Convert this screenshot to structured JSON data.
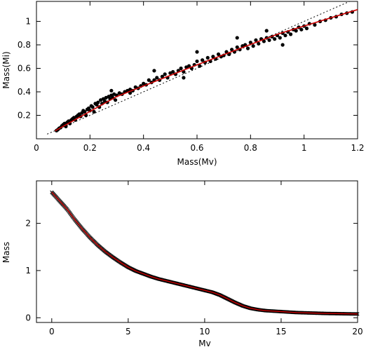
{
  "chart_data": [
    {
      "type": "scatter",
      "xlabel": "Mass(Mv)",
      "ylabel": "Mass(Mi)",
      "xlim": [
        0,
        1.2
      ],
      "ylim": [
        0,
        1.17
      ],
      "xticks": [
        "0",
        "0.2",
        "0.4",
        "0.6",
        "0.8",
        "1",
        "1.2"
      ],
      "yticks": [
        "0.2",
        "0.4",
        "0.6",
        "0.8",
        "1"
      ],
      "points_color": "#000000",
      "fit_color": "#cc0000",
      "reference": "1:1 dotted line",
      "scatter_points": [
        [
          0.075,
          0.07
        ],
        [
          0.08,
          0.078
        ],
        [
          0.085,
          0.09
        ],
        [
          0.09,
          0.095
        ],
        [
          0.095,
          0.11
        ],
        [
          0.1,
          0.12
        ],
        [
          0.105,
          0.13
        ],
        [
          0.11,
          0.105
        ],
        [
          0.115,
          0.14
        ],
        [
          0.12,
          0.15
        ],
        [
          0.125,
          0.13
        ],
        [
          0.13,
          0.16
        ],
        [
          0.135,
          0.17
        ],
        [
          0.14,
          0.18
        ],
        [
          0.145,
          0.16
        ],
        [
          0.15,
          0.19
        ],
        [
          0.155,
          0.2
        ],
        [
          0.16,
          0.21
        ],
        [
          0.165,
          0.19
        ],
        [
          0.17,
          0.22
        ],
        [
          0.175,
          0.24
        ],
        [
          0.18,
          0.23
        ],
        [
          0.185,
          0.2
        ],
        [
          0.19,
          0.25
        ],
        [
          0.195,
          0.26
        ],
        [
          0.2,
          0.24
        ],
        [
          0.205,
          0.28
        ],
        [
          0.21,
          0.27
        ],
        [
          0.215,
          0.23
        ],
        [
          0.22,
          0.3
        ],
        [
          0.225,
          0.29
        ],
        [
          0.23,
          0.31
        ],
        [
          0.235,
          0.27
        ],
        [
          0.24,
          0.33
        ],
        [
          0.245,
          0.3
        ],
        [
          0.25,
          0.34
        ],
        [
          0.255,
          0.32
        ],
        [
          0.26,
          0.35
        ],
        [
          0.265,
          0.31
        ],
        [
          0.27,
          0.36
        ],
        [
          0.275,
          0.34
        ],
        [
          0.28,
          0.37
        ],
        [
          0.285,
          0.35
        ],
        [
          0.29,
          0.38
        ],
        [
          0.295,
          0.33
        ],
        [
          0.3,
          0.37
        ],
        [
          0.31,
          0.39
        ],
        [
          0.32,
          0.38
        ],
        [
          0.33,
          0.4
        ],
        [
          0.34,
          0.41
        ],
        [
          0.35,
          0.42
        ],
        [
          0.36,
          0.41
        ],
        [
          0.37,
          0.44
        ],
        [
          0.38,
          0.43
        ],
        [
          0.39,
          0.45
        ],
        [
          0.4,
          0.47
        ],
        [
          0.41,
          0.46
        ],
        [
          0.42,
          0.5
        ],
        [
          0.43,
          0.48
        ],
        [
          0.44,
          0.5
        ],
        [
          0.45,
          0.52
        ],
        [
          0.46,
          0.5
        ],
        [
          0.47,
          0.53
        ],
        [
          0.48,
          0.55
        ],
        [
          0.49,
          0.52
        ],
        [
          0.5,
          0.56
        ],
        [
          0.51,
          0.57
        ],
        [
          0.52,
          0.55
        ],
        [
          0.53,
          0.58
        ],
        [
          0.54,
          0.6
        ],
        [
          0.55,
          0.57
        ],
        [
          0.56,
          0.61
        ],
        [
          0.57,
          0.62
        ],
        [
          0.58,
          0.6
        ],
        [
          0.59,
          0.63
        ],
        [
          0.6,
          0.66
        ],
        [
          0.61,
          0.62
        ],
        [
          0.62,
          0.67
        ],
        [
          0.63,
          0.65
        ],
        [
          0.64,
          0.69
        ],
        [
          0.65,
          0.66
        ],
        [
          0.66,
          0.7
        ],
        [
          0.67,
          0.68
        ],
        [
          0.68,
          0.72
        ],
        [
          0.69,
          0.7
        ],
        [
          0.7,
          0.71
        ],
        [
          0.71,
          0.74
        ],
        [
          0.72,
          0.72
        ],
        [
          0.73,
          0.76
        ],
        [
          0.74,
          0.74
        ],
        [
          0.75,
          0.78
        ],
        [
          0.76,
          0.76
        ],
        [
          0.77,
          0.79
        ],
        [
          0.78,
          0.8
        ],
        [
          0.79,
          0.77
        ],
        [
          0.8,
          0.82
        ],
        [
          0.81,
          0.79
        ],
        [
          0.82,
          0.84
        ],
        [
          0.83,
          0.81
        ],
        [
          0.84,
          0.85
        ],
        [
          0.85,
          0.83
        ],
        [
          0.86,
          0.86
        ],
        [
          0.87,
          0.84
        ],
        [
          0.88,
          0.87
        ],
        [
          0.89,
          0.85
        ],
        [
          0.9,
          0.88
        ],
        [
          0.91,
          0.86
        ],
        [
          0.92,
          0.9
        ],
        [
          0.93,
          0.88
        ],
        [
          0.94,
          0.91
        ],
        [
          0.95,
          0.89
        ],
        [
          0.96,
          0.93
        ],
        [
          0.97,
          0.92
        ],
        [
          0.98,
          0.95
        ],
        [
          0.99,
          0.93
        ],
        [
          1.0,
          0.96
        ],
        [
          1.01,
          0.94
        ],
        [
          1.02,
          0.98
        ],
        [
          1.04,
          0.97
        ],
        [
          1.06,
          1.0
        ],
        [
          1.08,
          1.01
        ],
        [
          1.1,
          1.03
        ],
        [
          1.12,
          1.04
        ],
        [
          1.14,
          1.06
        ],
        [
          1.16,
          1.07
        ],
        [
          1.18,
          1.08
        ],
        [
          0.28,
          0.41
        ],
        [
          0.44,
          0.58
        ],
        [
          0.6,
          0.74
        ],
        [
          0.75,
          0.86
        ],
        [
          0.86,
          0.92
        ],
        [
          0.92,
          0.8
        ],
        [
          0.55,
          0.52
        ],
        [
          0.35,
          0.39
        ]
      ],
      "fit_curve": [
        [
          0.07,
          0.068
        ],
        [
          0.3,
          0.36
        ],
        [
          0.6,
          0.63
        ],
        [
          0.9,
          0.89
        ],
        [
          1.2,
          1.1
        ]
      ]
    },
    {
      "type": "scatter",
      "xlabel": "Mv",
      "ylabel": "Mass",
      "xlim": [
        -1,
        20
      ],
      "ylim": [
        -0.1,
        2.9
      ],
      "xticks": [
        "0",
        "5",
        "10",
        "15",
        "20"
      ],
      "yticks": [
        "0",
        "1",
        "2"
      ],
      "points_color": "#000000",
      "fit_color": "#cc0000",
      "marker": "cross",
      "curve": [
        [
          0.0,
          2.66
        ],
        [
          0.5,
          2.48
        ],
        [
          1.0,
          2.3
        ],
        [
          1.5,
          2.08
        ],
        [
          2.0,
          1.88
        ],
        [
          2.5,
          1.7
        ],
        [
          3.0,
          1.54
        ],
        [
          3.5,
          1.4
        ],
        [
          4.0,
          1.28
        ],
        [
          4.5,
          1.17
        ],
        [
          5.0,
          1.07
        ],
        [
          5.5,
          0.99
        ],
        [
          6.0,
          0.93
        ],
        [
          6.5,
          0.87
        ],
        [
          7.0,
          0.82
        ],
        [
          7.5,
          0.78
        ],
        [
          8.0,
          0.74
        ],
        [
          8.5,
          0.7
        ],
        [
          9.0,
          0.66
        ],
        [
          9.5,
          0.62
        ],
        [
          10.0,
          0.58
        ],
        [
          10.5,
          0.54
        ],
        [
          11.0,
          0.48
        ],
        [
          11.5,
          0.4
        ],
        [
          12.0,
          0.32
        ],
        [
          12.5,
          0.25
        ],
        [
          13.0,
          0.2
        ],
        [
          13.5,
          0.17
        ],
        [
          14.0,
          0.15
        ],
        [
          14.5,
          0.14
        ],
        [
          15.0,
          0.13
        ],
        [
          15.5,
          0.12
        ],
        [
          16.0,
          0.11
        ],
        [
          16.5,
          0.105
        ],
        [
          17.0,
          0.1
        ],
        [
          17.5,
          0.095
        ],
        [
          18.0,
          0.09
        ],
        [
          18.5,
          0.088
        ],
        [
          19.0,
          0.085
        ],
        [
          19.5,
          0.082
        ],
        [
          20.0,
          0.08
        ]
      ]
    }
  ]
}
